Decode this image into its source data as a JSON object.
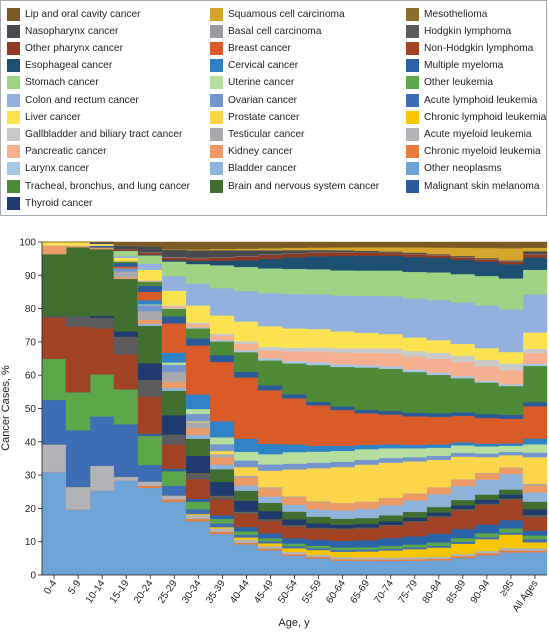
{
  "chart_data": {
    "type": "area",
    "stacking": "percent",
    "xlabel": "Age, y",
    "ylabel": "Cancer Cases, %",
    "ylim": [
      0,
      100
    ],
    "yticks": [
      0,
      10,
      20,
      30,
      40,
      50,
      60,
      70,
      80,
      90,
      100
    ],
    "grid": false,
    "legend_position": "top",
    "categories": [
      "0-4",
      "5-9",
      "10-14",
      "15-19",
      "20-24",
      "25-29",
      "30-34",
      "35-39",
      "40-44",
      "45-49",
      "50-54",
      "55-59",
      "60-64",
      "65-69",
      "70-74",
      "75-79",
      "80-84",
      "85-89",
      "90-94",
      "≥95",
      "All Ages"
    ],
    "series": [
      {
        "name": "Other neoplasms",
        "color": "#6ea3d6",
        "values": [
          30,
          19,
          24,
          27,
          21,
          15,
          11,
          9,
          7,
          6,
          5,
          4.5,
          4,
          4,
          4,
          4,
          4,
          4.5,
          5,
          5.5,
          6
        ]
      },
      {
        "name": "Chronic myeloid leukemia",
        "color": "#e87a3c",
        "values": [
          0,
          0,
          0,
          0,
          0.5,
          0.5,
          0.5,
          0.5,
          0.4,
          0.4,
          0.4,
          0.4,
          0.4,
          0.4,
          0.4,
          0.4,
          0.4,
          0.5,
          0.5,
          0.5,
          0.4
        ]
      },
      {
        "name": "Acute myeloid leukemia",
        "color": "#b1b3b6",
        "values": [
          8,
          6.5,
          7,
          1,
          1,
          0.8,
          0.8,
          0.7,
          0.7,
          0.6,
          0.6,
          0.6,
          0.6,
          0.6,
          0.6,
          0.6,
          0.6,
          0.6,
          0.6,
          0.6,
          0.7
        ]
      },
      {
        "name": "Chronic lymphoid leukemia",
        "color": "#f7c600",
        "values": [
          0,
          0,
          0,
          0,
          0,
          0,
          0.2,
          0.3,
          0.5,
          0.7,
          1,
          1.3,
          1.5,
          1.7,
          2,
          2.3,
          2.5,
          2.7,
          3,
          3.3,
          1.5
        ]
      },
      {
        "name": "Acute lymphoid leukemia",
        "color": "#3e6db5",
        "values": [
          13,
          16.5,
          14,
          15,
          4,
          2,
          1,
          0.8,
          0.6,
          0.5,
          0.5,
          0.5,
          0.5,
          0.5,
          0.5,
          0.5,
          0.5,
          0.5,
          0.5,
          0.5,
          0.8
        ]
      },
      {
        "name": "Other leukemia",
        "color": "#5ea64a",
        "values": [
          12,
          11,
          12,
          10,
          7,
          3,
          1.5,
          1,
          0.8,
          0.7,
          0.7,
          0.7,
          0.7,
          0.7,
          0.8,
          0.8,
          0.9,
          1,
          1,
          1,
          1
        ]
      },
      {
        "name": "Multiple myeloma",
        "color": "#2a63a8",
        "values": [
          0,
          0,
          0,
          0,
          0.5,
          0.5,
          0.6,
          0.8,
          1,
          1.2,
          1.4,
          1.6,
          1.8,
          2,
          2.2,
          2.3,
          2.4,
          2.4,
          2.2,
          2,
          1.3
        ]
      },
      {
        "name": "Non-Hodgkin lymphoma",
        "color": "#a14324",
        "values": [
          12,
          19,
          13,
          10,
          9,
          5,
          4,
          3.5,
          3,
          3,
          3,
          3,
          3.2,
          3.3,
          3.5,
          4,
          4.5,
          5,
          5,
          5,
          3.5
        ]
      },
      {
        "name": "Hodgkin lymphoma",
        "color": "#5c5c5e",
        "values": [
          0.5,
          3,
          3,
          5,
          4,
          2,
          1.2,
          0.7,
          0.4,
          0.3,
          0.3,
          0.2,
          0.2,
          0.2,
          0.2,
          0.2,
          0.2,
          0.2,
          0.2,
          0.2,
          0.5
        ]
      },
      {
        "name": "Mesothelioma",
        "color": "#8c6d2e",
        "values": [
          0,
          0,
          0,
          0,
          0,
          0,
          0.1,
          0.1,
          0.1,
          0.1,
          0.1,
          0.1,
          0.1,
          0.1,
          0.1,
          0.1,
          0.1,
          0.1,
          0.1,
          0.1,
          0.1
        ]
      },
      {
        "name": "Thyroid cancer",
        "color": "#1f3a6e",
        "values": [
          0,
          0,
          0.5,
          1.5,
          4,
          4,
          3.5,
          3,
          2.5,
          2,
          1.5,
          1.2,
          1,
          1,
          1,
          1,
          1,
          1,
          1,
          1,
          1.5
        ]
      },
      {
        "name": "Brain and nervous system cancer",
        "color": "#3f6e2f",
        "values": [
          18,
          20,
          19,
          15,
          9,
          5,
          3.5,
          2.8,
          2.3,
          2,
          2,
          1.8,
          1.7,
          1.7,
          1.7,
          1.6,
          1.5,
          1.4,
          1.3,
          1.2,
          2
        ]
      },
      {
        "name": "Bladder cancer",
        "color": "#8eb4dc",
        "values": [
          0,
          0,
          0,
          0,
          0.5,
          0.6,
          0.8,
          1,
          1.2,
          1.5,
          1.8,
          2,
          2.3,
          2.6,
          2.9,
          3.2,
          3.5,
          3.7,
          3.8,
          3.8,
          2.4
        ]
      },
      {
        "name": "Kidney cancer",
        "color": "#ec9b67",
        "values": [
          2.5,
          0.5,
          0.5,
          0.5,
          1,
          1.2,
          1.4,
          1.6,
          1.8,
          2,
          2,
          2,
          2,
          2,
          2,
          1.9,
          1.8,
          1.7,
          1.6,
          1.5,
          1.9
        ]
      },
      {
        "name": "Testicular cancer",
        "color": "#a7a9ac",
        "values": [
          0,
          0,
          0,
          1.5,
          2,
          2,
          1.2,
          0.7,
          0.4,
          0.3,
          0.2,
          0.2,
          0.1,
          0.1,
          0.1,
          0.1,
          0.1,
          0.1,
          0.1,
          0.1,
          0.4
        ]
      },
      {
        "name": "Prostate cancer",
        "color": "#fbd54a",
        "values": [
          0,
          0,
          0,
          0,
          0,
          0,
          0.2,
          0.7,
          2,
          4,
          7,
          9,
          10,
          10.5,
          10,
          9,
          7.5,
          6,
          4,
          3,
          7
        ]
      },
      {
        "name": "Ovarian cancer",
        "color": "#7396cf",
        "values": [
          0,
          0,
          0,
          1,
          1.5,
          1.5,
          1.5,
          1.5,
          1.5,
          1.5,
          1.5,
          1.5,
          1.5,
          1.4,
          1.3,
          1.2,
          1.1,
          1,
          0.9,
          0.8,
          1.2
        ]
      },
      {
        "name": "Uterine cancer",
        "color": "#b6de9f",
        "values": [
          0,
          0,
          0,
          0,
          0.2,
          0.5,
          1,
          1.5,
          2,
          2.5,
          3,
          3,
          3,
          3,
          2.8,
          2.5,
          2.2,
          2,
          1.8,
          1.5,
          2.2
        ]
      },
      {
        "name": "Cervical cancer",
        "color": "#2f82c6",
        "values": [
          0,
          0,
          0,
          0,
          1,
          2,
          3,
          3.5,
          3,
          2.5,
          2,
          1.6,
          1.4,
          1.2,
          1.1,
          1,
          0.9,
          0.8,
          0.7,
          0.6,
          1.5
        ]
      },
      {
        "name": "Breast cancer",
        "color": "#d95b27",
        "values": [
          0,
          0,
          0,
          0.5,
          2,
          6,
          10,
          13,
          14,
          13,
          12,
          11,
          10,
          9,
          8.5,
          8,
          7.5,
          7,
          6.5,
          6,
          8.5
        ]
      },
      {
        "name": "Malignant skin melanoma",
        "color": "#2c5b9a",
        "values": [
          0,
          0,
          0.5,
          1,
          1.5,
          1.5,
          1.5,
          1.5,
          1.3,
          1.2,
          1.1,
          1,
          1,
          1,
          1,
          1,
          1,
          1,
          1,
          1,
          1.1
        ]
      },
      {
        "name": "Tracheal, bronchus, and lung cancer",
        "color": "#4f8a36",
        "values": [
          0,
          0,
          0,
          0.5,
          1,
          1.5,
          2,
          3,
          4.5,
          6,
          8,
          10,
          11,
          12,
          12,
          11.5,
          10.5,
          9,
          8,
          7,
          9.5
        ]
      },
      {
        "name": "Larynx cancer",
        "color": "#a6c8e8",
        "values": [
          0,
          0,
          0,
          0,
          0,
          0.1,
          0.2,
          0.3,
          0.4,
          0.5,
          0.6,
          0.7,
          0.7,
          0.7,
          0.7,
          0.6,
          0.6,
          0.5,
          0.4,
          0.4,
          0.6
        ]
      },
      {
        "name": "Pancreatic cancer",
        "color": "#f4b08f",
        "values": [
          0,
          0,
          0,
          0,
          0.2,
          0.4,
          0.7,
          1,
          1.5,
          2,
          2.5,
          3,
          3.3,
          3.5,
          3.7,
          3.8,
          3.8,
          3.8,
          3.7,
          3.5,
          2.8
        ]
      },
      {
        "name": "Gallbladder and biliary tract cancer",
        "color": "#c8c9cb",
        "values": [
          0,
          0,
          0,
          0,
          0.1,
          0.2,
          0.3,
          0.4,
          0.6,
          0.8,
          1,
          1.1,
          1.2,
          1.3,
          1.4,
          1.5,
          1.6,
          1.6,
          1.6,
          1.6,
          1.1
        ]
      },
      {
        "name": "Liver cancer",
        "color": "#fde24f",
        "values": [
          1,
          1,
          0.5,
          1,
          2.5,
          3,
          3.5,
          4,
          4.5,
          5,
          5,
          5,
          4.7,
          4.4,
          4.1,
          3.8,
          3.5,
          3.2,
          3,
          2.8,
          4.3
        ]
      },
      {
        "name": "Colon and rectum cancer",
        "color": "#93b1de",
        "values": [
          0,
          0,
          0,
          0.5,
          1.5,
          3,
          4.5,
          6,
          7,
          8,
          9,
          9.5,
          10,
          10.5,
          10.8,
          11,
          11,
          11,
          10.8,
          10.5,
          10
        ]
      },
      {
        "name": "Stomach cancer",
        "color": "#a0d485",
        "values": [
          0,
          0,
          0,
          1.5,
          2,
          3,
          4,
          5,
          5.5,
          6,
          6.5,
          6.8,
          7,
          7.2,
          7.3,
          7.5,
          7.5,
          7.5,
          7.5,
          7.5,
          6.5
        ]
      },
      {
        "name": "Esophageal cancer",
        "color": "#1d4f73",
        "values": [
          0,
          0,
          0,
          0,
          0.1,
          0.3,
          0.6,
          1,
          1.5,
          2.3,
          3,
          3.5,
          4,
          4.2,
          4.2,
          4.2,
          4,
          3.8,
          3.6,
          3.5,
          3.2
        ]
      },
      {
        "name": "Other pharynx cancer",
        "color": "#8e3a24",
        "values": [
          0,
          0,
          0,
          0.5,
          0.5,
          0.5,
          0.6,
          0.7,
          0.9,
          1,
          1,
          1,
          1,
          0.9,
          0.8,
          0.8,
          0.7,
          0.7,
          0.6,
          0.6,
          0.9
        ]
      },
      {
        "name": "Basal cell carcinoma",
        "color": "#9a9b9e",
        "values": [
          0,
          0,
          0,
          0,
          0.1,
          0.1,
          0.1,
          0.1,
          0.1,
          0.1,
          0.1,
          0.1,
          0.1,
          0.1,
          0.1,
          0.1,
          0.1,
          0.1,
          0.1,
          0.1,
          0.1
        ]
      },
      {
        "name": "Nasopharynx cancer",
        "color": "#474a4e",
        "values": [
          0,
          0,
          0.5,
          1,
          1.5,
          1.5,
          1.5,
          1.5,
          1.3,
          1,
          0.8,
          0.6,
          0.5,
          0.4,
          0.3,
          0.3,
          0.2,
          0.2,
          0.2,
          0.2,
          0.7
        ]
      },
      {
        "name": "Squamous cell carcinoma",
        "color": "#d4a72c",
        "values": [
          0,
          0,
          0,
          0,
          0,
          0.1,
          0.2,
          0.3,
          0.4,
          0.5,
          0.6,
          0.7,
          0.8,
          1,
          1.2,
          1.5,
          1.8,
          2.2,
          2.6,
          3,
          0.9
        ]
      },
      {
        "name": "Lip and oral cavity cancer",
        "color": "#7d5a25",
        "values": [
          0,
          0,
          0,
          1,
          1,
          1.5,
          1.5,
          1.5,
          1.5,
          1.5,
          1.5,
          1.5,
          1.5,
          1.5,
          1.5,
          1.5,
          1.5,
          1.5,
          1.5,
          1.5,
          1.5
        ]
      }
    ]
  },
  "legend": [
    {
      "label": "Lip and oral cavity cancer",
      "color": "#7d5a25"
    },
    {
      "label": "Squamous cell carcinoma",
      "color": "#d4a72c"
    },
    {
      "label": "Mesothelioma",
      "color": "#8c6d2e"
    },
    {
      "label": "Nasopharynx cancer",
      "color": "#474a4e"
    },
    {
      "label": "Basal cell carcinoma",
      "color": "#9a9b9e"
    },
    {
      "label": "Hodgkin lymphoma",
      "color": "#5c5c5e"
    },
    {
      "label": "Other pharynx cancer",
      "color": "#8e3a24"
    },
    {
      "label": "Breast cancer",
      "color": "#d95b27"
    },
    {
      "label": "Non-Hodgkin lymphoma",
      "color": "#a14324"
    },
    {
      "label": "Esophageal cancer",
      "color": "#1d4f73"
    },
    {
      "label": "Cervical cancer",
      "color": "#2f82c6"
    },
    {
      "label": "Multiple myeloma",
      "color": "#2a63a8"
    },
    {
      "label": "Stomach cancer",
      "color": "#a0d485"
    },
    {
      "label": "Uterine cancer",
      "color": "#b6de9f"
    },
    {
      "label": "Other leukemia",
      "color": "#5ea64a"
    },
    {
      "label": "Colon and rectum cancer",
      "color": "#93b1de"
    },
    {
      "label": "Ovarian cancer",
      "color": "#7396cf"
    },
    {
      "label": "Acute lymphoid leukemia",
      "color": "#3e6db5"
    },
    {
      "label": "Liver cancer",
      "color": "#fde24f"
    },
    {
      "label": "Prostate cancer",
      "color": "#fbd54a"
    },
    {
      "label": "Chronic lymphoid leukemia",
      "color": "#f7c600"
    },
    {
      "label": "Gallbladder and biliary tract cancer",
      "color": "#c8c9cb"
    },
    {
      "label": "Testicular cancer",
      "color": "#a7a9ac"
    },
    {
      "label": "Acute myeloid leukemia",
      "color": "#b1b3b6"
    },
    {
      "label": "Pancreatic cancer",
      "color": "#f4b08f"
    },
    {
      "label": "Kidney cancer",
      "color": "#ec9b67"
    },
    {
      "label": "Chronic myeloid leukemia",
      "color": "#e87a3c"
    },
    {
      "label": "Larynx cancer",
      "color": "#a6c8e8"
    },
    {
      "label": "Bladder cancer",
      "color": "#8eb4dc"
    },
    {
      "label": "Other neoplasms",
      "color": "#6ea3d6"
    },
    {
      "label": "Tracheal, bronchus, and lung cancer",
      "color": "#4f8a36"
    },
    {
      "label": "Brain and nervous system cancer",
      "color": "#3f6e2f"
    },
    {
      "label": "Malignant skin melanoma",
      "color": "#2c5b9a"
    },
    {
      "label": "Thyroid cancer",
      "color": "#1f3a6e"
    }
  ]
}
